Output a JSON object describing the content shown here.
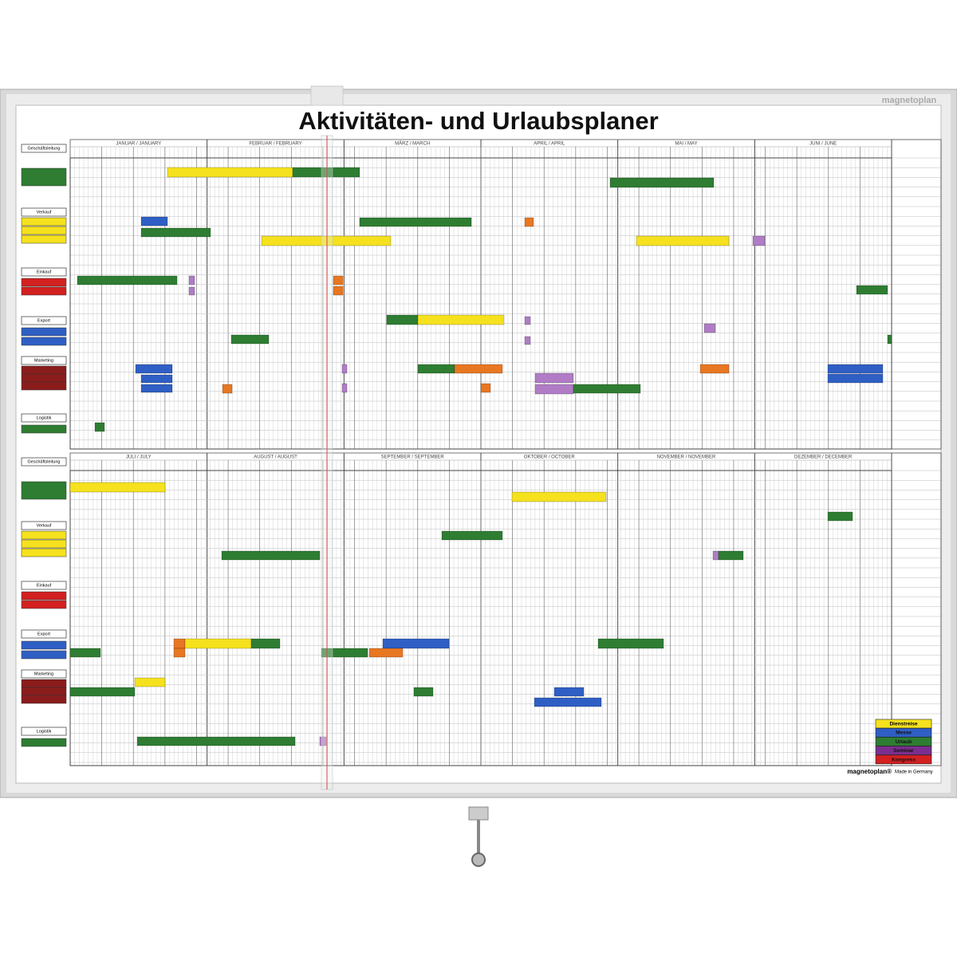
{
  "header": {
    "title": "Aktivitäten- und Urlaubsplaner",
    "brand": "magnetoplan"
  },
  "calendar": {
    "first_half": {
      "months": [
        "JANUAR / JANUARY",
        "FEBRUAR / FEBRUARY",
        "MÄRZ / MARCH",
        "APRIL / APRIL",
        "MAI / MAY",
        "JUNI / JUNE"
      ]
    },
    "second_half": {
      "months": [
        "JULI / JULY",
        "AUGUST / AUGUST",
        "SEPTEMBER / SEPTEMBER",
        "OKTOBER / OCTOBER",
        "NOVEMBER / NOVEMBER",
        "DEZEMBER / DECEMBER"
      ]
    }
  },
  "groups": [
    "Geschäftsleitung",
    "Verkauf",
    "Einkauf",
    "Export",
    "Marketing",
    "Logistik"
  ],
  "legend": [
    "Dienstreise",
    "Messe",
    "Urlaub",
    "Seminar",
    "Kongress"
  ],
  "footer": {
    "brand": "magnetoplan®",
    "origin": "Made in Germany"
  }
}
